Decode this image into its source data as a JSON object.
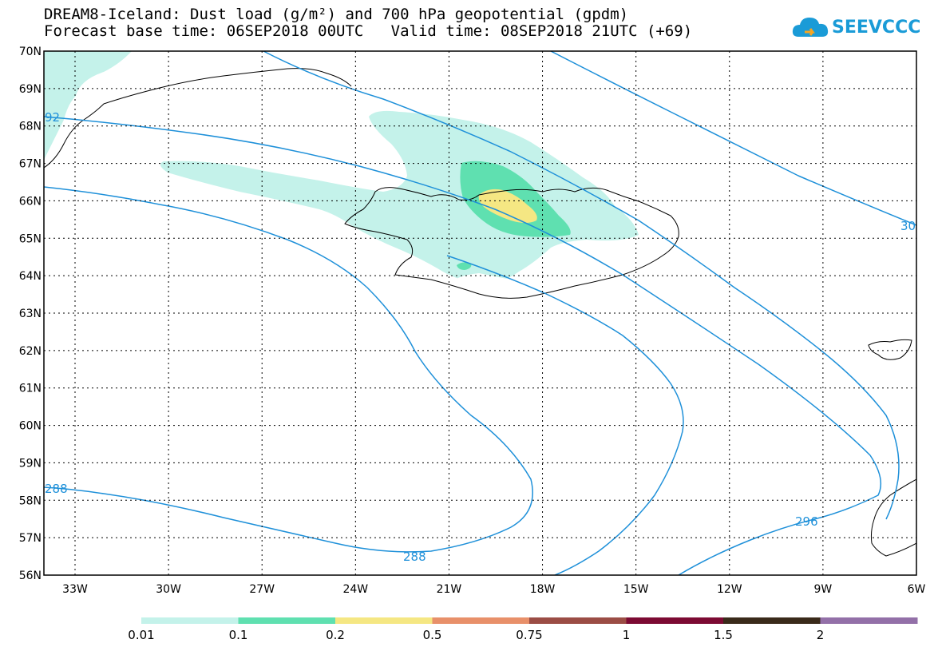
{
  "header": {
    "title_line1": "DREAM8-Iceland: Dust load (g/m²) and 700 hPa geopotential (gpdm)",
    "title_line2": "Forecast base time: 06SEP2018 00UTC   Valid time: 08SEP2018 21UTC (+69)"
  },
  "logo": {
    "text": "SEEVCCC",
    "icon": "cloud-icon",
    "color": "#1a9bd7"
  },
  "map": {
    "lat_labels": [
      "70N",
      "69N",
      "68N",
      "67N",
      "66N",
      "65N",
      "64N",
      "63N",
      "62N",
      "61N",
      "60N",
      "59N",
      "58N",
      "57N",
      "56N"
    ],
    "lon_labels": [
      "33W",
      "30W",
      "27W",
      "24W",
      "21W",
      "18W",
      "15W",
      "12W",
      "9W",
      "6W"
    ],
    "contour_labels": [
      "92",
      "30",
      "288",
      "288",
      "296"
    ],
    "contour_color": "#1e90d9"
  },
  "legend": {
    "colors": [
      "#c4f2ea",
      "#5fe0b0",
      "#f5e783",
      "#e8906a",
      "#9b4d45",
      "#7c0a33",
      "#3a2a1a",
      "#9370a8"
    ],
    "ticks": [
      "0.01",
      "0.1",
      "0.2",
      "0.5",
      "0.75",
      "1",
      "1.5",
      "2"
    ]
  }
}
